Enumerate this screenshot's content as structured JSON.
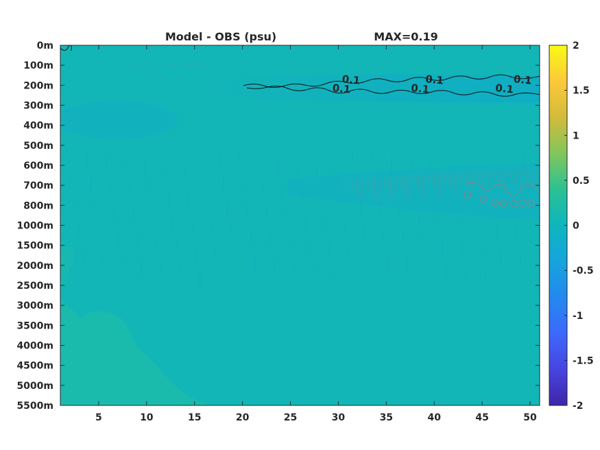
{
  "chart_data": {
    "type": "heatmap",
    "title": "Model - OBS (psu)",
    "max_label": "MAX=0.19",
    "xlabel": "",
    "ylabel": "",
    "x_ticks": [
      5,
      10,
      15,
      20,
      25,
      30,
      35,
      40,
      45,
      50
    ],
    "xlim": [
      1,
      51
    ],
    "y_levels": [
      "0m",
      "100m",
      "200m",
      "300m",
      "400m",
      "500m",
      "600m",
      "700m",
      "800m",
      "1000m",
      "1500m",
      "2000m",
      "2500m",
      "3000m",
      "3500m",
      "4000m",
      "4500m",
      "5000m",
      "5500m"
    ],
    "colorbar": {
      "ticks": [
        "2",
        "1.5",
        "1",
        "0.5",
        "0",
        "-0.5",
        "-1",
        "-1.5",
        "-2"
      ],
      "range": [
        -2,
        2
      ],
      "colormap": "parula"
    },
    "contours": [
      {
        "level": 0.1,
        "label": "0.1",
        "labels_at": [
          {
            "x": 31.3,
            "depth": "200m"
          },
          {
            "x": 30.3,
            "depth": "200m"
          },
          {
            "x": 40,
            "depth": "200m"
          },
          {
            "x": 38.5,
            "depth": "200m"
          },
          {
            "x": 49.2,
            "depth": "200m"
          },
          {
            "x": 47.3,
            "depth": "200m"
          }
        ]
      }
    ],
    "field_value_typical": 0.0,
    "field_colors": {
      "background": "#13b6b7",
      "warmer": "#1dbba9",
      "cooler": "#0fadc4"
    }
  }
}
